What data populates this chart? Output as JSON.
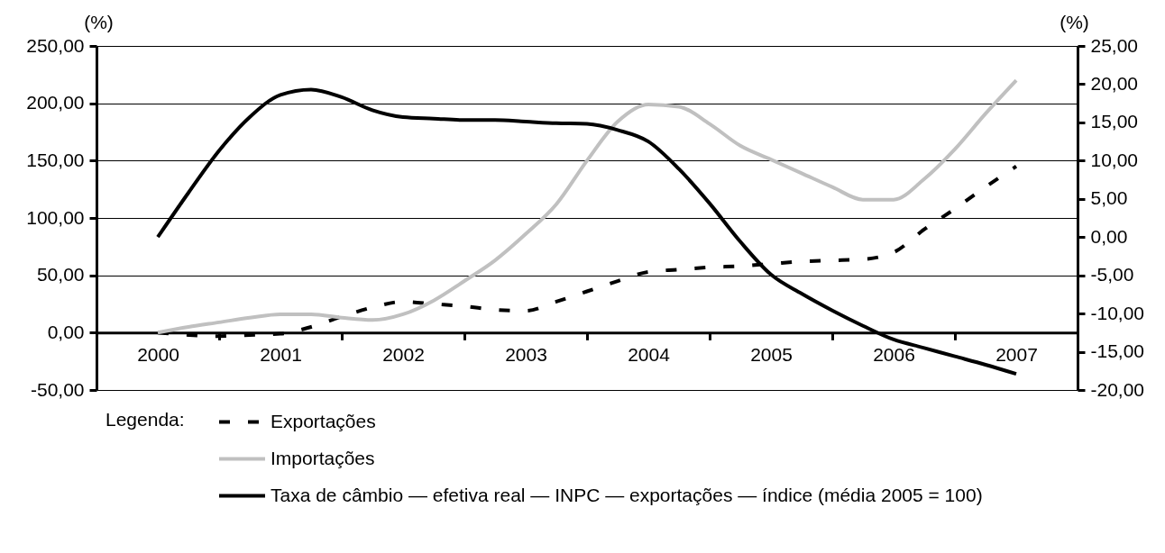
{
  "chart_data": {
    "type": "line",
    "ylabel": "(%)",
    "y2label": "(%)",
    "legend_title": "Legenda:",
    "x": [
      2000,
      2000.25,
      2000.5,
      2000.75,
      2001,
      2001.25,
      2001.5,
      2001.75,
      2002,
      2002.25,
      2002.5,
      2002.75,
      2003,
      2003.25,
      2003.5,
      2003.75,
      2004,
      2004.25,
      2004.5,
      2004.75,
      2005,
      2005.25,
      2005.5,
      2005.75,
      2006,
      2006.25,
      2006.5,
      2006.75,
      2007
    ],
    "xlim": [
      1999.5,
      2007.5
    ],
    "xticks": [
      2000,
      {
        "value": 2000.5,
        "label": null
      },
      2001,
      {
        "value": 2001.5,
        "label": null
      },
      2002,
      {
        "value": 2002.5,
        "label": null
      },
      2003,
      {
        "value": 2003.5,
        "label": null
      },
      2004,
      {
        "value": 2004.5,
        "label": null
      },
      2005,
      {
        "value": 2005.5,
        "label": null
      },
      2006,
      {
        "value": 2006.5,
        "label": null
      },
      2007
    ],
    "ylim": [
      -50,
      250
    ],
    "yticks": [
      {
        "value": -50,
        "label": "-50,00"
      },
      {
        "value": 0,
        "label": "0,00"
      },
      {
        "value": 50,
        "label": "50,00"
      },
      {
        "value": 100,
        "label": "100,00"
      },
      {
        "value": 150,
        "label": "150,00"
      },
      {
        "value": 200,
        "label": "200,00"
      },
      {
        "value": 250,
        "label": "250,00"
      }
    ],
    "y2lim": [
      -20,
      25
    ],
    "y2ticks": [
      {
        "value": -20,
        "label": "-20,00"
      },
      {
        "value": -15,
        "label": "-15,00"
      },
      {
        "value": -10,
        "label": "-10,00"
      },
      {
        "value": -5,
        "label": "-5,00"
      },
      {
        "value": 0,
        "label": "0,00"
      },
      {
        "value": 5,
        "label": "5,00"
      },
      {
        "value": 10,
        "label": "10,00"
      },
      {
        "value": 15,
        "label": "15,00"
      },
      {
        "value": 20,
        "label": "20,00"
      },
      {
        "value": 25,
        "label": "25,00"
      }
    ],
    "grid": "y",
    "legend": "bottom",
    "line_style": "solid",
    "series": [
      {
        "name": "Exportações",
        "color": "#000000",
        "line_style": "dashed",
        "values": [
          0,
          -2,
          -3,
          -2,
          -1,
          5,
          14,
          22,
          27,
          25,
          23,
          20,
          19,
          27,
          36,
          45,
          53,
          55,
          57,
          58,
          60,
          62,
          63,
          64,
          70,
          90,
          108,
          127,
          145
        ]
      },
      {
        "name": "Importações",
        "color": "#c0c0c0",
        "values": [
          0,
          5,
          9,
          13,
          16,
          16,
          13,
          11,
          16,
          28,
          45,
          63,
          86,
          112,
          150,
          184,
          199,
          197,
          182,
          163,
          151,
          139,
          127,
          116,
          116,
          134,
          160,
          191,
          220
        ]
      },
      {
        "name": "Taxa de câmbio — efetiva real — INPC — exportações — índice (média 2005 = 100)",
        "color": "#000000",
        "axis": "y2",
        "values": [
          0,
          5.8,
          11.3,
          15.7,
          18.6,
          19.3,
          18.3,
          16.6,
          15.7,
          15.5,
          15.3,
          15.3,
          15.1,
          14.9,
          14.8,
          14,
          12.5,
          8.9,
          4.4,
          -0.6,
          -4.9,
          -7.4,
          -9.6,
          -11.6,
          -13.4,
          -14.5,
          -15.6,
          -16.7,
          -17.9
        ]
      }
    ]
  }
}
